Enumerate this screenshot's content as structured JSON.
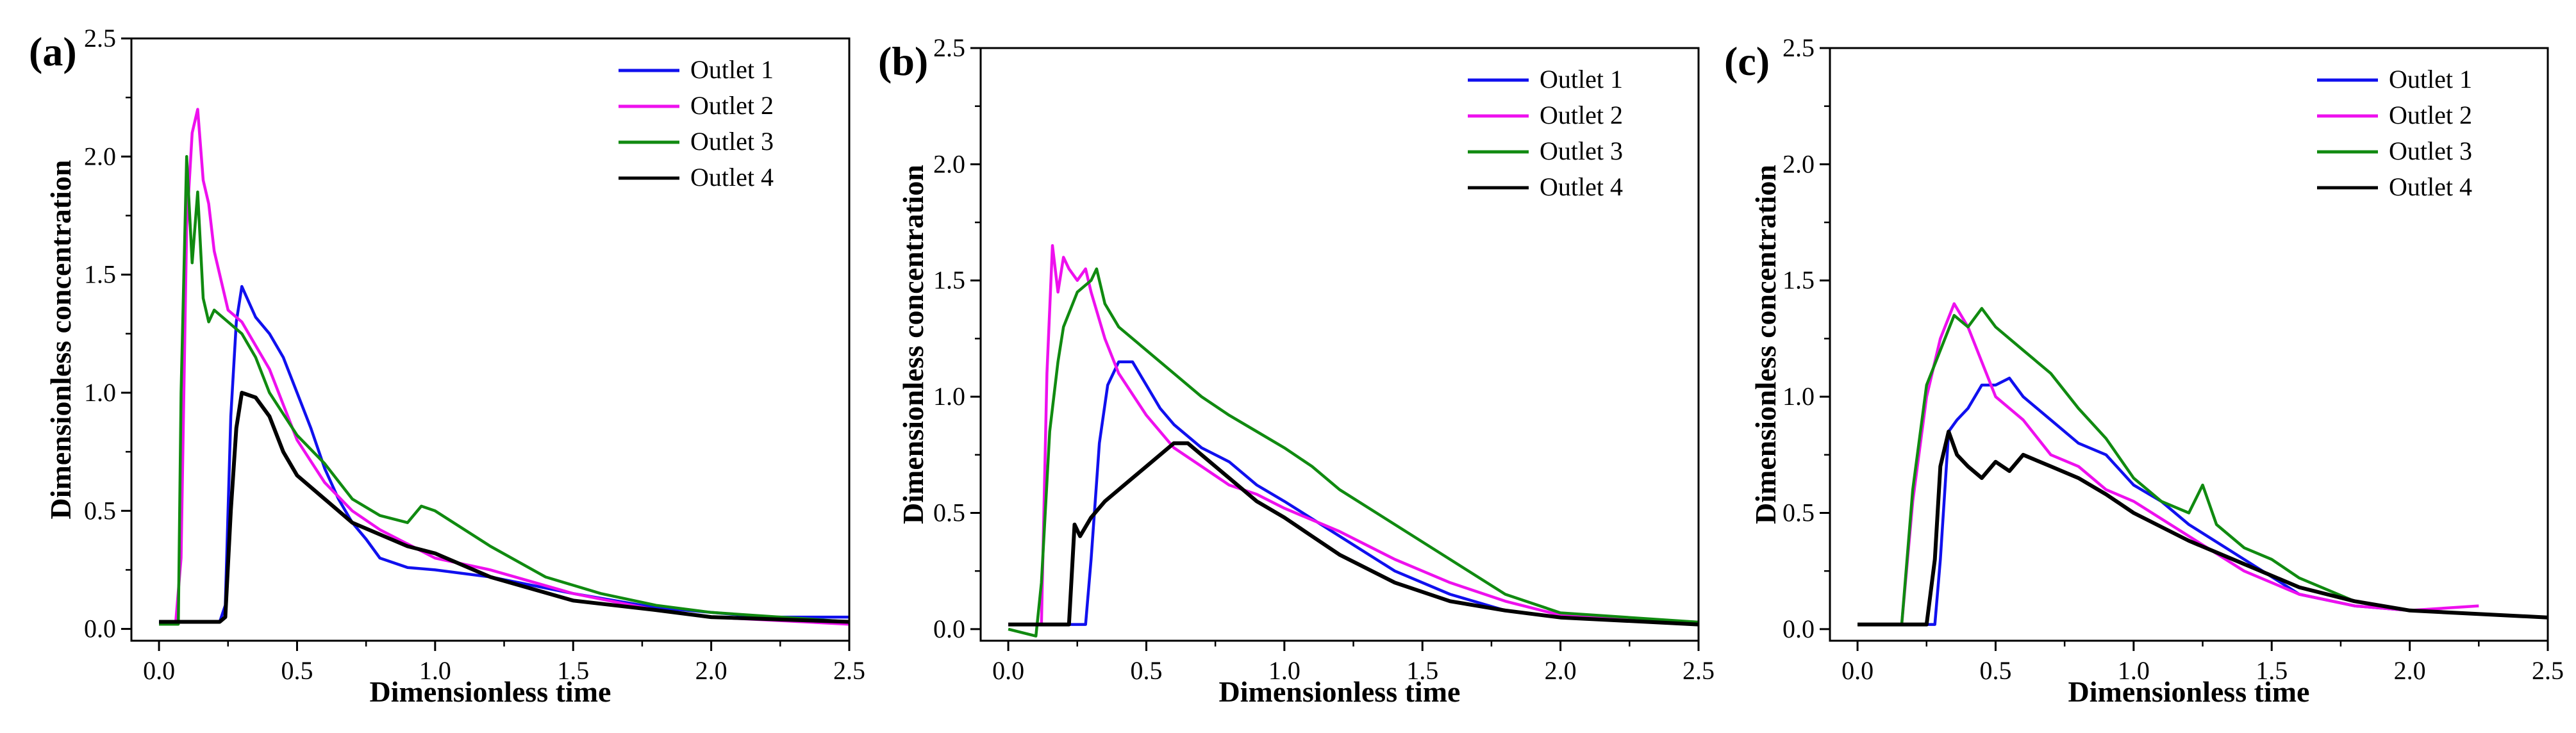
{
  "figure": {
    "series_colors": {
      "Outlet 1": "#1010ee",
      "Outlet 2": "#ee10ee",
      "Outlet 3": "#108a10",
      "Outlet 4": "#000000"
    }
  },
  "chart_data": [
    {
      "type": "line",
      "panel_label": "(a)",
      "title": "",
      "xlabel": "Dimensionless time",
      "ylabel": "Dimensionless concentration",
      "xlim": [
        -0.1,
        2.5
      ],
      "ylim": [
        -0.05,
        2.5
      ],
      "xticks": [
        "0.0",
        "0.5",
        "1.0",
        "1.5",
        "2.0",
        "2.5"
      ],
      "yticks": [
        "0.0",
        "0.5",
        "1.0",
        "1.5",
        "2.0",
        "2.5"
      ],
      "legend": [
        "Outlet 1",
        "Outlet 2",
        "Outlet 3",
        "Outlet 4"
      ],
      "legend_position": "top-right",
      "series": [
        {
          "name": "Outlet 1",
          "x": [
            0.0,
            0.22,
            0.24,
            0.26,
            0.28,
            0.3,
            0.35,
            0.4,
            0.45,
            0.5,
            0.55,
            0.6,
            0.65,
            0.7,
            0.75,
            0.8,
            0.9,
            1.0,
            1.2,
            1.5,
            1.8,
            2.0,
            2.2,
            2.5
          ],
          "y": [
            0.03,
            0.03,
            0.1,
            0.9,
            1.3,
            1.45,
            1.32,
            1.25,
            1.15,
            1.0,
            0.85,
            0.68,
            0.55,
            0.45,
            0.38,
            0.3,
            0.26,
            0.25,
            0.22,
            0.15,
            0.09,
            0.07,
            0.05,
            0.05
          ]
        },
        {
          "name": "Outlet 2",
          "x": [
            0.0,
            0.06,
            0.08,
            0.1,
            0.12,
            0.14,
            0.16,
            0.18,
            0.2,
            0.25,
            0.3,
            0.35,
            0.4,
            0.45,
            0.5,
            0.6,
            0.7,
            0.8,
            1.0,
            1.2,
            1.5,
            1.8,
            2.0,
            2.5
          ],
          "y": [
            0.02,
            0.02,
            0.3,
            1.7,
            2.1,
            2.2,
            1.9,
            1.8,
            1.6,
            1.35,
            1.3,
            1.2,
            1.1,
            0.95,
            0.8,
            0.62,
            0.5,
            0.42,
            0.3,
            0.25,
            0.15,
            0.08,
            0.05,
            0.02
          ]
        },
        {
          "name": "Outlet 3",
          "x": [
            0.0,
            0.07,
            0.08,
            0.1,
            0.12,
            0.14,
            0.16,
            0.18,
            0.2,
            0.25,
            0.3,
            0.35,
            0.4,
            0.5,
            0.6,
            0.7,
            0.8,
            0.9,
            0.95,
            1.0,
            1.2,
            1.4,
            1.6,
            1.8,
            2.0,
            2.5
          ],
          "y": [
            0.02,
            0.02,
            1.0,
            2.0,
            1.55,
            1.85,
            1.4,
            1.3,
            1.35,
            1.3,
            1.25,
            1.15,
            1.0,
            0.82,
            0.7,
            0.55,
            0.48,
            0.45,
            0.52,
            0.5,
            0.35,
            0.22,
            0.15,
            0.1,
            0.07,
            0.03
          ]
        },
        {
          "name": "Outlet 4",
          "x": [
            0.0,
            0.22,
            0.24,
            0.26,
            0.28,
            0.3,
            0.35,
            0.4,
            0.45,
            0.5,
            0.6,
            0.7,
            0.8,
            0.9,
            1.0,
            1.2,
            1.5,
            1.8,
            2.0,
            2.5
          ],
          "y": [
            0.03,
            0.03,
            0.05,
            0.5,
            0.85,
            1.0,
            0.98,
            0.9,
            0.75,
            0.65,
            0.55,
            0.45,
            0.4,
            0.35,
            0.32,
            0.22,
            0.12,
            0.08,
            0.05,
            0.03
          ]
        }
      ]
    },
    {
      "type": "line",
      "panel_label": "(b)",
      "title": "",
      "xlabel": "Dimensionless time",
      "ylabel": "Dimensionless concentration",
      "xlim": [
        -0.1,
        2.5
      ],
      "ylim": [
        -0.05,
        2.5
      ],
      "xticks": [
        "0.0",
        "0.5",
        "1.0",
        "1.5",
        "2.0",
        "2.5"
      ],
      "yticks": [
        "0.0",
        "0.5",
        "1.0",
        "1.5",
        "2.0",
        "2.5"
      ],
      "legend": [
        "Outlet 1",
        "Outlet 2",
        "Outlet 3",
        "Outlet 4"
      ],
      "legend_position": "top-right",
      "series": [
        {
          "name": "Outlet 1",
          "x": [
            0.0,
            0.28,
            0.3,
            0.33,
            0.36,
            0.4,
            0.45,
            0.5,
            0.55,
            0.6,
            0.7,
            0.8,
            0.9,
            1.0,
            1.2,
            1.4,
            1.6,
            1.8,
            2.0,
            2.5
          ],
          "y": [
            0.02,
            0.02,
            0.3,
            0.8,
            1.05,
            1.15,
            1.15,
            1.05,
            0.95,
            0.88,
            0.78,
            0.72,
            0.62,
            0.55,
            0.4,
            0.25,
            0.15,
            0.08,
            0.05,
            0.02
          ]
        },
        {
          "name": "Outlet 2",
          "x": [
            0.0,
            0.12,
            0.14,
            0.16,
            0.18,
            0.2,
            0.22,
            0.25,
            0.28,
            0.3,
            0.35,
            0.4,
            0.5,
            0.6,
            0.7,
            0.8,
            0.9,
            1.0,
            1.2,
            1.4,
            1.6,
            1.8,
            2.0,
            2.5
          ],
          "y": [
            0.02,
            0.02,
            1.1,
            1.65,
            1.45,
            1.6,
            1.55,
            1.5,
            1.55,
            1.45,
            1.25,
            1.1,
            0.92,
            0.78,
            0.7,
            0.62,
            0.58,
            0.52,
            0.42,
            0.3,
            0.2,
            0.12,
            0.06,
            0.03
          ]
        },
        {
          "name": "Outlet 3",
          "x": [
            0.0,
            0.1,
            0.12,
            0.15,
            0.18,
            0.2,
            0.25,
            0.3,
            0.32,
            0.35,
            0.4,
            0.5,
            0.6,
            0.7,
            0.8,
            0.9,
            1.0,
            1.1,
            1.2,
            1.4,
            1.6,
            1.8,
            2.0,
            2.5
          ],
          "y": [
            0.0,
            -0.03,
            0.2,
            0.85,
            1.15,
            1.3,
            1.45,
            1.5,
            1.55,
            1.4,
            1.3,
            1.2,
            1.1,
            1.0,
            0.92,
            0.85,
            0.78,
            0.7,
            0.6,
            0.45,
            0.3,
            0.15,
            0.07,
            0.03
          ]
        },
        {
          "name": "Outlet 4",
          "x": [
            0.0,
            0.22,
            0.24,
            0.26,
            0.3,
            0.35,
            0.4,
            0.45,
            0.5,
            0.55,
            0.6,
            0.65,
            0.7,
            0.8,
            0.9,
            1.0,
            1.1,
            1.2,
            1.4,
            1.6,
            1.8,
            2.0,
            2.5
          ],
          "y": [
            0.02,
            0.02,
            0.45,
            0.4,
            0.48,
            0.55,
            0.6,
            0.65,
            0.7,
            0.75,
            0.8,
            0.8,
            0.75,
            0.65,
            0.55,
            0.48,
            0.4,
            0.32,
            0.2,
            0.12,
            0.08,
            0.05,
            0.02
          ]
        }
      ]
    },
    {
      "type": "line",
      "panel_label": "(c)",
      "title": "",
      "xlabel": "Dimensionless time",
      "ylabel": "Dimensionless concentration",
      "xlim": [
        -0.1,
        2.5
      ],
      "ylim": [
        -0.05,
        2.5
      ],
      "xticks": [
        "0.0",
        "0.5",
        "1.0",
        "1.5",
        "2.0",
        "2.5"
      ],
      "yticks": [
        "0.0",
        "0.5",
        "1.0",
        "1.5",
        "2.0",
        "2.5"
      ],
      "legend": [
        "Outlet 1",
        "Outlet 2",
        "Outlet 3",
        "Outlet 4"
      ],
      "legend_position": "top-right",
      "series": [
        {
          "name": "Outlet 1",
          "x": [
            0.0,
            0.28,
            0.3,
            0.33,
            0.36,
            0.4,
            0.45,
            0.5,
            0.55,
            0.6,
            0.7,
            0.8,
            0.9,
            1.0,
            1.1,
            1.2,
            1.4,
            1.6,
            1.8,
            2.0,
            2.5
          ],
          "y": [
            0.02,
            0.02,
            0.3,
            0.85,
            0.9,
            0.95,
            1.05,
            1.05,
            1.08,
            1.0,
            0.9,
            0.8,
            0.75,
            0.62,
            0.55,
            0.45,
            0.3,
            0.15,
            0.1,
            0.08,
            0.05
          ]
        },
        {
          "name": "Outlet 2",
          "x": [
            0.0,
            0.16,
            0.2,
            0.25,
            0.3,
            0.35,
            0.4,
            0.45,
            0.5,
            0.6,
            0.7,
            0.8,
            0.9,
            1.0,
            1.2,
            1.4,
            1.6,
            1.8,
            2.0,
            2.25
          ],
          "y": [
            0.02,
            0.02,
            0.55,
            1.0,
            1.25,
            1.4,
            1.3,
            1.15,
            1.0,
            0.9,
            0.75,
            0.7,
            0.6,
            0.55,
            0.4,
            0.25,
            0.15,
            0.1,
            0.08,
            0.1
          ]
        },
        {
          "name": "Outlet 3",
          "x": [
            0.0,
            0.16,
            0.2,
            0.25,
            0.3,
            0.35,
            0.4,
            0.45,
            0.5,
            0.6,
            0.7,
            0.8,
            0.9,
            1.0,
            1.1,
            1.2,
            1.25,
            1.3,
            1.4,
            1.5,
            1.6,
            1.8,
            2.0,
            2.5
          ],
          "y": [
            0.02,
            0.02,
            0.6,
            1.05,
            1.2,
            1.35,
            1.3,
            1.38,
            1.3,
            1.2,
            1.1,
            0.95,
            0.82,
            0.65,
            0.55,
            0.5,
            0.62,
            0.45,
            0.35,
            0.3,
            0.22,
            0.12,
            0.08,
            0.05
          ]
        },
        {
          "name": "Outlet 4",
          "x": [
            0.0,
            0.25,
            0.28,
            0.3,
            0.33,
            0.36,
            0.4,
            0.45,
            0.5,
            0.55,
            0.6,
            0.7,
            0.8,
            0.9,
            1.0,
            1.2,
            1.4,
            1.6,
            1.8,
            2.0,
            2.5
          ],
          "y": [
            0.02,
            0.02,
            0.3,
            0.7,
            0.85,
            0.75,
            0.7,
            0.65,
            0.72,
            0.68,
            0.75,
            0.7,
            0.65,
            0.58,
            0.5,
            0.38,
            0.28,
            0.18,
            0.12,
            0.08,
            0.05
          ]
        }
      ]
    }
  ]
}
